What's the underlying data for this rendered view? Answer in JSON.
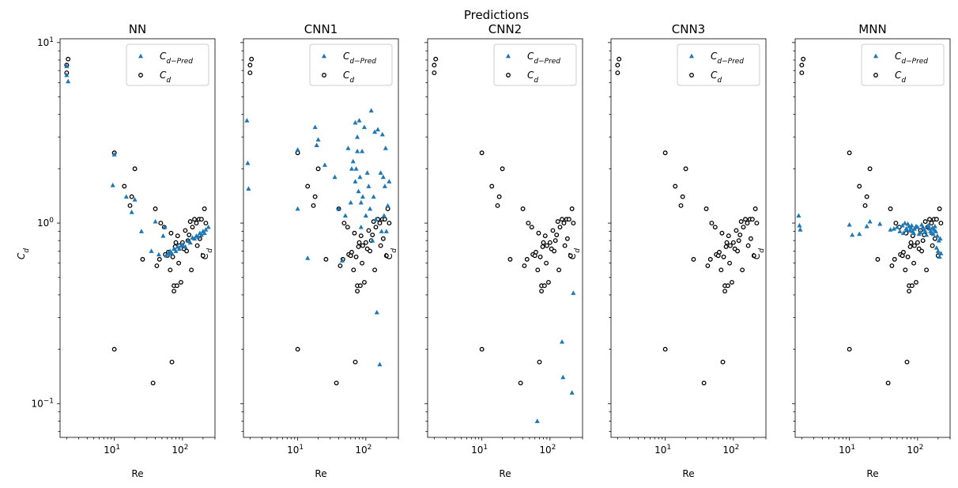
{
  "figure": {
    "title": "Predictions"
  },
  "colors": {
    "pred": "#1f77b4",
    "actual": "#000000"
  },
  "x_ticks": [
    {
      "value": 10,
      "base": "10",
      "exp": "1"
    },
    {
      "value": 100,
      "base": "10",
      "exp": "2"
    }
  ],
  "y_ticks": [
    {
      "value": 10,
      "base": "10",
      "exp": "1"
    },
    {
      "value": 1,
      "base": "10",
      "exp": "0"
    },
    {
      "value": 0.1,
      "base": "10",
      "exp": "−1"
    }
  ],
  "legend": [
    {
      "base": "C",
      "sub": "d−Pred",
      "marker": "triangle"
    },
    {
      "base": "C",
      "sub": "d",
      "marker": "circle"
    }
  ],
  "chart_data": {
    "type": "scatter",
    "xscale": "log",
    "yscale": "log",
    "xlim": [
      1.6,
      300
    ],
    "ylim": [
      0.065,
      10.5
    ],
    "xlabel": "Re",
    "ylabel": "C_d",
    "legend_position": "top-right",
    "grid": false,
    "actual": {
      "name": "C_d",
      "x": [
        2,
        2,
        2.1,
        10,
        10,
        14,
        17,
        18,
        20,
        26,
        37,
        40,
        42,
        46,
        48,
        54,
        56,
        60,
        62,
        66,
        68,
        70,
        72,
        75,
        75,
        78,
        80,
        83,
        85,
        88,
        90,
        95,
        100,
        105,
        110,
        115,
        120,
        125,
        130,
        135,
        140,
        150,
        160,
        165,
        175,
        180,
        190,
        200,
        210,
        220
      ],
      "y": [
        7.5,
        6.8,
        8.1,
        2.45,
        0.2,
        1.6,
        1.25,
        1.4,
        2.0,
        0.63,
        0.13,
        1.2,
        0.58,
        0.63,
        1.0,
        0.95,
        0.67,
        0.66,
        0.69,
        0.55,
        0.88,
        0.17,
        0.65,
        0.45,
        0.42,
        0.74,
        0.78,
        0.45,
        0.85,
        0.6,
        0.75,
        0.47,
        0.78,
        0.72,
        0.91,
        0.7,
        0.8,
        0.86,
        1.02,
        0.55,
        0.95,
        1.05,
        1.0,
        0.75,
        1.05,
        0.82,
        1.05,
        0.66,
        1.2,
        1.0
      ]
    },
    "panels": [
      {
        "title": "NN",
        "pred": {
          "name": "C_d−Pred",
          "x": [
            2,
            2,
            2.1,
            9.5,
            10,
            15,
            18,
            20,
            25,
            35,
            40,
            45,
            52,
            55,
            58,
            62,
            66,
            70,
            75,
            80,
            85,
            90,
            95,
            100,
            110,
            120,
            130,
            140,
            150,
            160,
            170,
            180,
            190,
            200,
            210,
            220,
            240
          ],
          "y": [
            7.4,
            6.6,
            6.1,
            1.62,
            2.4,
            1.4,
            1.15,
            1.35,
            0.9,
            0.7,
            1.02,
            0.67,
            0.85,
            0.95,
            0.66,
            0.68,
            0.7,
            0.68,
            0.72,
            0.7,
            0.74,
            0.72,
            0.75,
            0.76,
            0.74,
            0.8,
            0.78,
            0.83,
            0.82,
            0.85,
            0.84,
            0.88,
            0.86,
            0.9,
            0.88,
            0.92,
            0.95
          ]
        }
      },
      {
        "title": "CNN1",
        "pred": {
          "name": "C_d−Pred",
          "x": [
            1.8,
            1.85,
            1.9,
            10,
            10,
            14,
            18,
            19,
            20,
            25,
            35,
            40,
            45,
            50,
            55,
            60,
            62,
            65,
            70,
            70,
            72,
            75,
            75,
            78,
            80,
            82,
            85,
            85,
            88,
            90,
            95,
            100,
            105,
            110,
            115,
            120,
            125,
            130,
            135,
            140,
            145,
            150,
            160,
            165,
            170,
            175,
            180,
            185,
            190,
            195,
            200,
            210,
            220
          ],
          "y": [
            3.7,
            2.15,
            1.55,
            2.55,
            1.2,
            0.64,
            3.4,
            2.7,
            2.9,
            2.1,
            1.8,
            1.2,
            0.62,
            1.1,
            2.6,
            1.3,
            2.0,
            2.2,
            3.6,
            1.7,
            2.0,
            3.0,
            2.5,
            1.5,
            3.7,
            1.8,
            1.3,
            0.95,
            2.5,
            1.4,
            3.4,
            1.1,
            1.9,
            1.6,
            1.2,
            4.2,
            0.8,
            1.4,
            3.2,
            1.05,
            0.32,
            3.3,
            0.165,
            1.9,
            0.9,
            3.1,
            1.8,
            1.1,
            1.6,
            2.6,
            0.9,
            1.25,
            1.7
          ]
        }
      },
      {
        "title": "CNN2",
        "pred": {
          "name": "C_d−Pred",
          "x": [
            65,
            150,
            155,
            210,
            220
          ],
          "y": [
            0.08,
            0.22,
            0.14,
            0.115,
            0.41
          ]
        }
      },
      {
        "title": "CNN3",
        "pred": {
          "name": "C_d−Pred",
          "x": [],
          "y": []
        }
      },
      {
        "title": "MNN",
        "pred": {
          "name": "C_d−Pred",
          "x": [
            1.8,
            1.85,
            1.9,
            10,
            11,
            14,
            18,
            20,
            28,
            40,
            45,
            50,
            55,
            60,
            62,
            65,
            68,
            70,
            72,
            75,
            78,
            80,
            82,
            85,
            88,
            90,
            95,
            100,
            105,
            110,
            115,
            120,
            125,
            130,
            135,
            140,
            145,
            150,
            155,
            160,
            165,
            170,
            175,
            180,
            185,
            190,
            195,
            200,
            205,
            210,
            215,
            220
          ],
          "y": [
            1.1,
            0.97,
            0.92,
            0.98,
            0.86,
            0.87,
            0.96,
            1.02,
            0.99,
            0.92,
            0.93,
            0.95,
            0.9,
            0.97,
            0.88,
            1.0,
            0.93,
            0.92,
            0.99,
            0.96,
            0.91,
            0.94,
            0.97,
            0.9,
            0.88,
            0.93,
            0.96,
            0.95,
            0.87,
            0.89,
            0.98,
            0.95,
            0.92,
            0.9,
            0.86,
            0.96,
            0.97,
            0.93,
            0.9,
            0.88,
            0.94,
            0.87,
            0.92,
            0.96,
            0.9,
            0.73,
            0.85,
            0.7,
            0.8,
            0.65,
            0.82,
            0.68
          ]
        }
      }
    ]
  }
}
